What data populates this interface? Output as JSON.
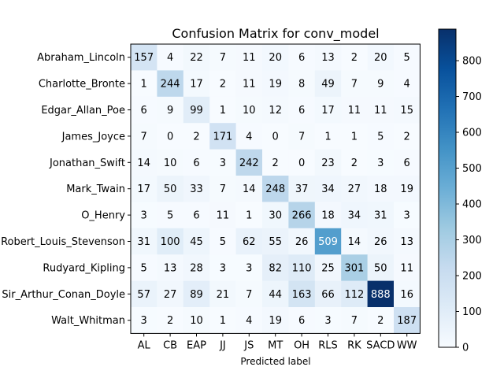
{
  "chart_data": {
    "type": "heatmap",
    "title": "Confusion Matrix for conv_model",
    "xlabel": "Predicted label",
    "ylabel": "",
    "row_labels": [
      "Abraham_Lincoln",
      "Charlotte_Bronte",
      "Edgar_Allan_Poe",
      "James_Joyce",
      "Jonathan_Swift",
      "Mark_Twain",
      "O_Henry",
      "Robert_Louis_Stevenson",
      "Rudyard_Kipling",
      "Sir_Arthur_Conan_Doyle",
      "Walt_Whitman"
    ],
    "col_labels": [
      "AL",
      "CB",
      "EAP",
      "JJ",
      "JS",
      "MT",
      "OH",
      "RLS",
      "RK",
      "SACD",
      "WW"
    ],
    "matrix": [
      [
        157,
        4,
        22,
        7,
        11,
        20,
        6,
        13,
        2,
        20,
        5
      ],
      [
        1,
        244,
        17,
        2,
        11,
        19,
        8,
        49,
        7,
        9,
        4
      ],
      [
        6,
        9,
        99,
        1,
        10,
        12,
        6,
        17,
        11,
        11,
        15
      ],
      [
        7,
        0,
        2,
        171,
        4,
        0,
        7,
        1,
        1,
        5,
        2
      ],
      [
        14,
        10,
        6,
        3,
        242,
        2,
        0,
        23,
        2,
        3,
        6
      ],
      [
        17,
        50,
        33,
        7,
        14,
        248,
        37,
        34,
        27,
        18,
        19
      ],
      [
        3,
        5,
        6,
        11,
        1,
        30,
        266,
        18,
        34,
        31,
        3
      ],
      [
        31,
        100,
        45,
        5,
        62,
        55,
        26,
        509,
        14,
        26,
        13
      ],
      [
        5,
        13,
        28,
        3,
        3,
        82,
        110,
        25,
        301,
        50,
        11
      ],
      [
        57,
        27,
        89,
        21,
        7,
        44,
        163,
        66,
        112,
        888,
        16
      ],
      [
        3,
        2,
        10,
        1,
        4,
        19,
        6,
        3,
        7,
        2,
        187
      ]
    ],
    "colorbar": {
      "colormap": "Blues",
      "min": 0,
      "max": 888,
      "ticks": [
        0,
        100,
        200,
        300,
        400,
        500,
        600,
        700,
        800
      ]
    },
    "grid": false
  }
}
